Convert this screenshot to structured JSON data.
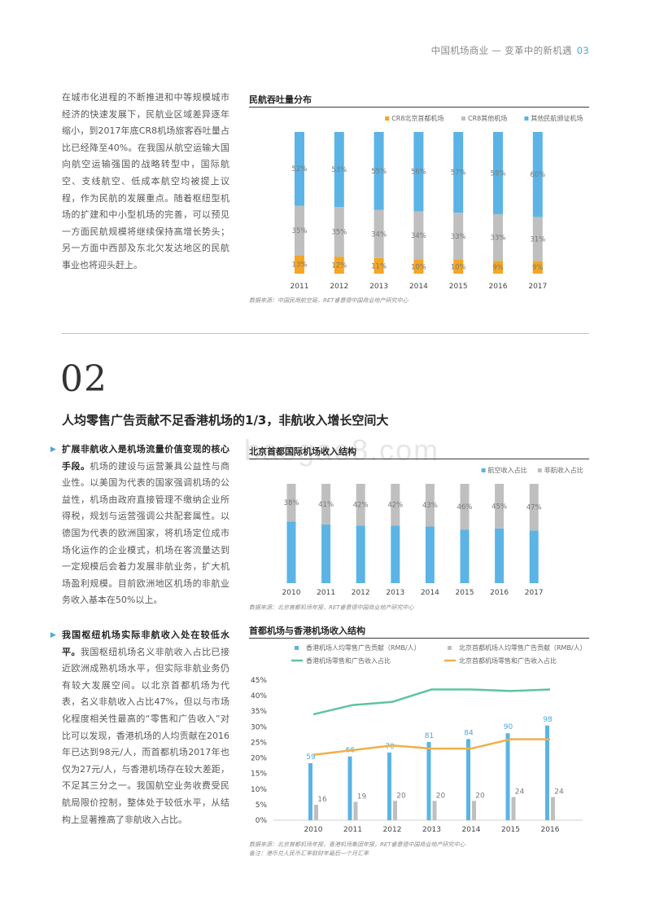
{
  "header": {
    "title": "中国机场商业 — 变革中的新机遇",
    "page": "03"
  },
  "intro_paragraph": "在城市化进程的不断推进和中等规模城市经济的快速发展下，民航业区域差异逐年缩小，到2017年底CR8机场旅客吞吐量占比已经降至40%。在我国从航空运输大国向航空运输强国的战略转型中，国际航空、支线航空、低成本航空均被提上议程，作为民航的发展重点。随着枢纽型机场的扩建和中小型机场的完善，可以预见一方面民航规模将继续保持高增长势头；另一方面中西部及东北欠发达地区的民航事业也将迎头赶上。",
  "section": {
    "number": "02",
    "title": "人均零售广告贡献不足香港机场的1/3，非航收入增长空间大"
  },
  "bullet1": {
    "bold": "扩展非航收入是机场流量价值变现的核心手段。",
    "text": "机场的建设与运营兼具公益性与商业性。以美国为代表的国家强调机场的公益性，机场由政府直接管理不缴纳企业所得税，规划与运营强调公共配套属性。以德国为代表的欧洲国家，将机场定位成市场化运作的企业模式，机场在客流量达到一定规模后会着力发展非航业务，扩大机场盈利规模。目前欧洲地区机场的非航业务收入基本在50%以上。"
  },
  "bullet2": {
    "bold": "我国枢纽机场实际非航收入处在较低水平。",
    "text": "我国枢纽机场名义非航收入占比已接近欧洲成熟机场水平，但实际非航业务仍有较大发展空间。以北京首都机场为代表，名义非航收入占比47%，但以与市场化程度相关性最高的“零售和广告收入”对比可以发现，香港机场的人均贡献在2016年已达到98元/人，而首都机场2017年也仅为27元/人，与香港机场存在较大差距，不足其三分之一。我国航空业务收费受民航局限价控制，整体处于较低水平，从结构上显著推高了非航收入占比。"
  },
  "colors": {
    "orange": "#f5a623",
    "gray": "#bfbfbf",
    "blue": "#5bb4e5",
    "teal": "#5fc3a6",
    "gold": "#f0b049",
    "accent": "#4aa8de"
  },
  "chart1": {
    "title": "民航吞吐量分布",
    "source": "数据来源：中国民用航空局，RET睿意德中国商业地产研究中心",
    "chart_data": {
      "type": "bar",
      "stacked": true,
      "percent": true,
      "categories": [
        "2011",
        "2012",
        "2013",
        "2014",
        "2015",
        "2016",
        "2017"
      ],
      "series": [
        {
          "name": "CR8北京首都机场",
          "color": "#f5a623",
          "values": [
            13,
            12,
            11,
            10,
            10,
            9,
            9
          ]
        },
        {
          "name": "CR8其他机场",
          "color": "#bfbfbf",
          "values": [
            35,
            35,
            34,
            34,
            33,
            33,
            31
          ]
        },
        {
          "name": "其他民航颁证机场",
          "color": "#5bb4e5",
          "values": [
            52,
            53,
            55,
            56,
            57,
            58,
            60
          ]
        }
      ],
      "legend": "top-right"
    }
  },
  "chart2": {
    "title": "北京首都国际机场收入结构",
    "source": "数据来源：北京首都机场年报，RET睿意德中国商业地产研究中心",
    "chart_data": {
      "type": "bar",
      "stacked": true,
      "percent": true,
      "categories": [
        "2010",
        "2011",
        "2012",
        "2013",
        "2014",
        "2015",
        "2016",
        "2017"
      ],
      "series": [
        {
          "name": "航空收入占比",
          "color": "#5bb4e5",
          "values": [
            62,
            59,
            58,
            58,
            57,
            54,
            55,
            53
          ]
        },
        {
          "name": "非航收入占比",
          "color": "#bfbfbf",
          "values": [
            38,
            41,
            42,
            42,
            43,
            46,
            45,
            47
          ]
        }
      ],
      "labels_series": "非航收入占比",
      "legend": "top-right"
    }
  },
  "chart3": {
    "title": "首都机场与香港机场收入结构",
    "source": "数据来源：北京首都机场年报，香港机场集团年报，RET睿意德中国商业地产研究中心",
    "note": "备注：港币兑人民币汇率取财年最后一个月汇率",
    "chart_data": {
      "type": "bar+line",
      "categories": [
        "2010",
        "2011",
        "2012",
        "2013",
        "2014",
        "2015",
        "2016"
      ],
      "bars": [
        {
          "name": "香港机场人均零售广告贡献（RMB/人）",
          "color": "#5bb4e5",
          "values": [
            59,
            66,
            70,
            81,
            84,
            90,
            98
          ]
        },
        {
          "name": "北京首都机场人均零售广告贡献（RMB/人）",
          "color": "#bfbfbf",
          "values": [
            16,
            19,
            20,
            20,
            20,
            24,
            24
          ]
        }
      ],
      "lines": [
        {
          "name": "香港机场零售和广告收入占比",
          "color": "#5fc3a6",
          "values": [
            34,
            37,
            38,
            42,
            42,
            41.5,
            42
          ]
        },
        {
          "name": "北京首都机场零售和广告收入占比",
          "color": "#f0b049",
          "values": [
            21,
            22.5,
            24,
            23,
            23,
            26,
            26
          ]
        }
      ],
      "y_left": {
        "min": 0,
        "max": 45,
        "ticks": [
          "0%",
          "5%",
          "10%",
          "15%",
          "20%",
          "25%",
          "30%",
          "35%",
          "40%",
          "45%"
        ]
      },
      "bar_max": 145,
      "legend": "top"
    }
  }
}
